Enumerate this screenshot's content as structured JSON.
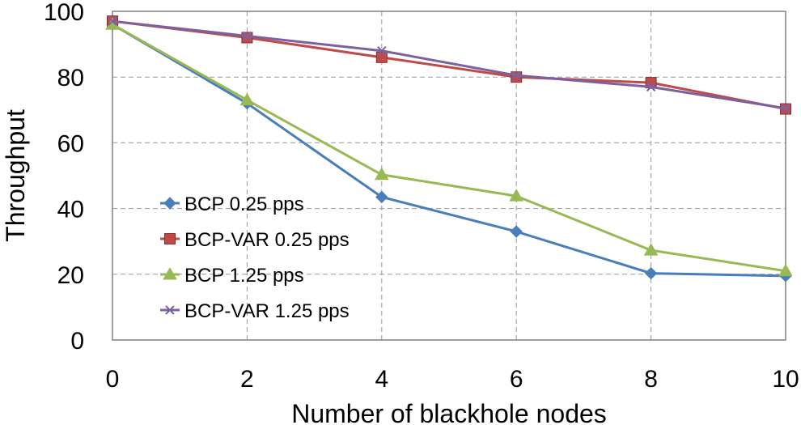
{
  "chart_data": {
    "type": "line",
    "title": "",
    "xlabel": "Number of blackhole nodes",
    "ylabel": "Throughput",
    "x": [
      0,
      2,
      4,
      6,
      8,
      10
    ],
    "xlim": [
      0,
      10
    ],
    "ylim": [
      0,
      100
    ],
    "xticks": [
      "0",
      "2",
      "4",
      "6",
      "8",
      "10"
    ],
    "yticks": [
      "0",
      "20",
      "40",
      "60",
      "80",
      "100"
    ],
    "grid": true,
    "legend_position": "left-lower",
    "series": [
      {
        "name": "BCP 0.25 pps",
        "color": "#4a7ebb",
        "marker": "diamond",
        "values": [
          96,
          72,
          43.5,
          33,
          20.3,
          19.5
        ]
      },
      {
        "name": "BCP-VAR 0.25 pps",
        "color": "#be4b48",
        "marker": "square",
        "values": [
          97,
          92,
          86,
          80,
          78.3,
          70.3
        ]
      },
      {
        "name": "BCP 1.25 pps",
        "color": "#98b954",
        "marker": "triangle",
        "values": [
          96,
          73,
          50.3,
          43.8,
          27.3,
          21
        ]
      },
      {
        "name": "BCP-VAR 1.25 pps",
        "color": "#7d60a0",
        "marker": "x",
        "values": [
          97,
          92.5,
          88,
          80.5,
          77,
          70.5
        ]
      }
    ]
  }
}
